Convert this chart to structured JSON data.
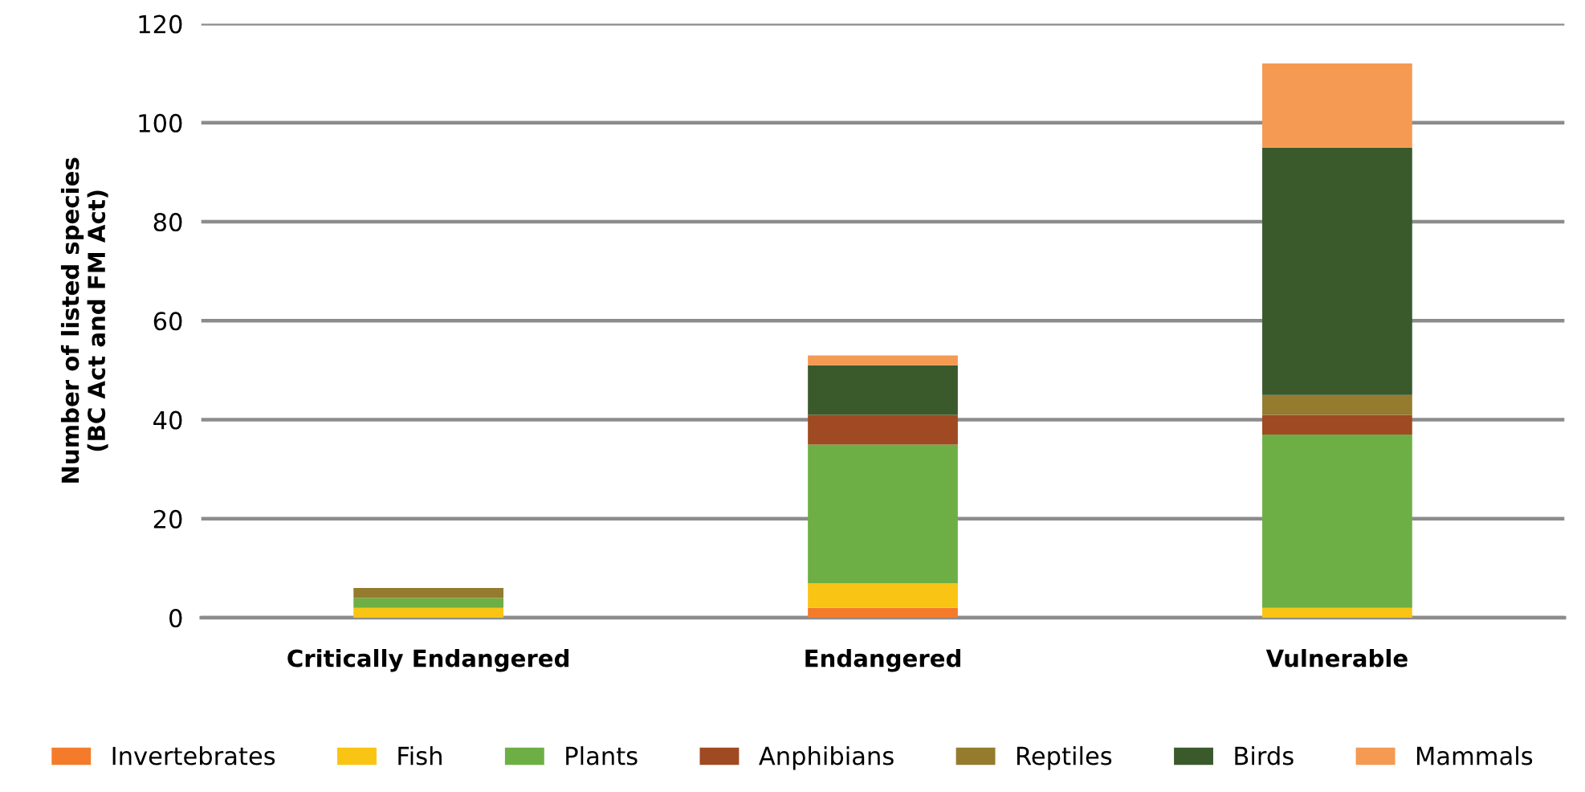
{
  "chart_data": {
    "type": "bar",
    "stacked": true,
    "ylabel": "Number of listed species\n(BC Act and FM Act)",
    "categories": [
      "Critically Endangered",
      "Endangered",
      "Vulnerable"
    ],
    "series": [
      {
        "name": "Invertebrates",
        "color": "#f47b2a",
        "values": [
          0,
          2,
          0
        ]
      },
      {
        "name": "Fish",
        "color": "#f9c413",
        "values": [
          2,
          5,
          2
        ]
      },
      {
        "name": "Plants",
        "color": "#6daf45",
        "values": [
          2,
          28,
          35
        ]
      },
      {
        "name": "Anphibians",
        "color": "#9f4a22",
        "values": [
          0,
          6,
          4
        ]
      },
      {
        "name": "Reptiles",
        "color": "#957b2e",
        "values": [
          2,
          0,
          4
        ]
      },
      {
        "name": "Birds",
        "color": "#3a5a2c",
        "values": [
          0,
          10,
          50
        ]
      },
      {
        "name": "Mammals",
        "color": "#f49a52",
        "values": [
          0,
          2,
          17
        ]
      }
    ],
    "ylim": [
      0,
      120
    ],
    "yticks": [
      0,
      20,
      40,
      60,
      80,
      100,
      120
    ],
    "grid": "y",
    "legend": "bottom"
  }
}
